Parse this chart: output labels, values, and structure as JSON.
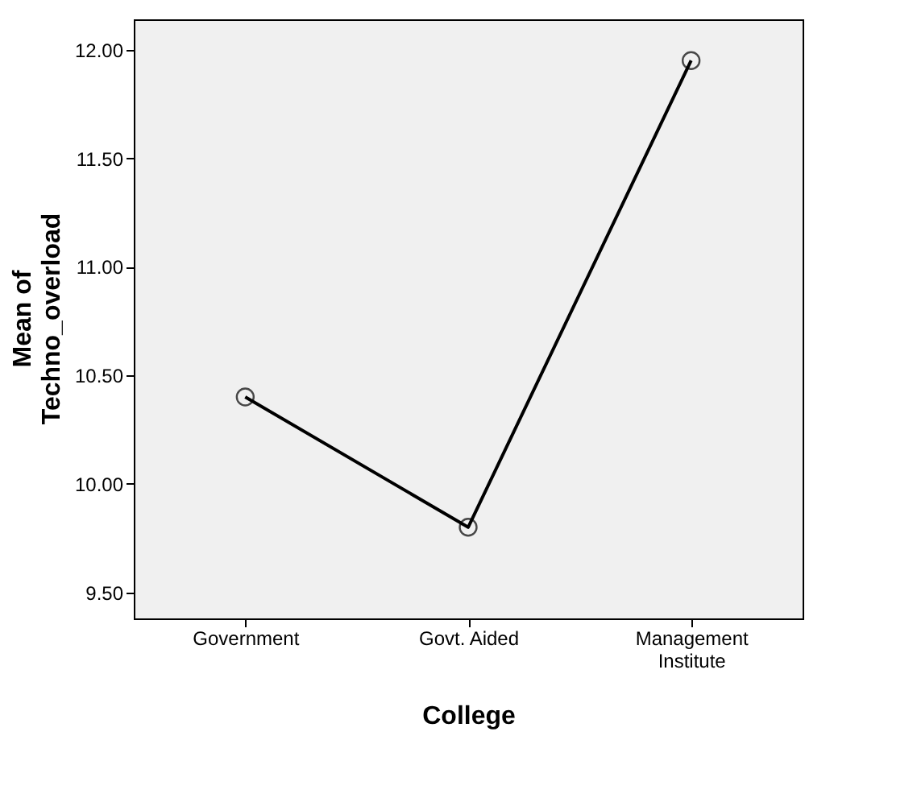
{
  "chart_data": {
    "type": "line",
    "xlabel": "College",
    "ylabel": "Mean of Techno_overload",
    "categories": [
      "Government",
      "Govt. Aided",
      "Management Institute"
    ],
    "series": [
      {
        "color": "#000000",
        "values": [
          10.4,
          9.8,
          11.95
        ]
      }
    ],
    "ylim": [
      9.38,
      12.14
    ],
    "yticks": [
      {
        "value": 9.5,
        "label": "9.50"
      },
      {
        "value": 10.0,
        "label": "10.00"
      },
      {
        "value": 10.5,
        "label": "10.50"
      },
      {
        "value": 11.0,
        "label": "11.00"
      },
      {
        "value": 11.5,
        "label": "11.50"
      },
      {
        "value": 12.0,
        "label": "12.00"
      }
    ],
    "marker": "circle",
    "line_style": "solid",
    "grid": false
  }
}
